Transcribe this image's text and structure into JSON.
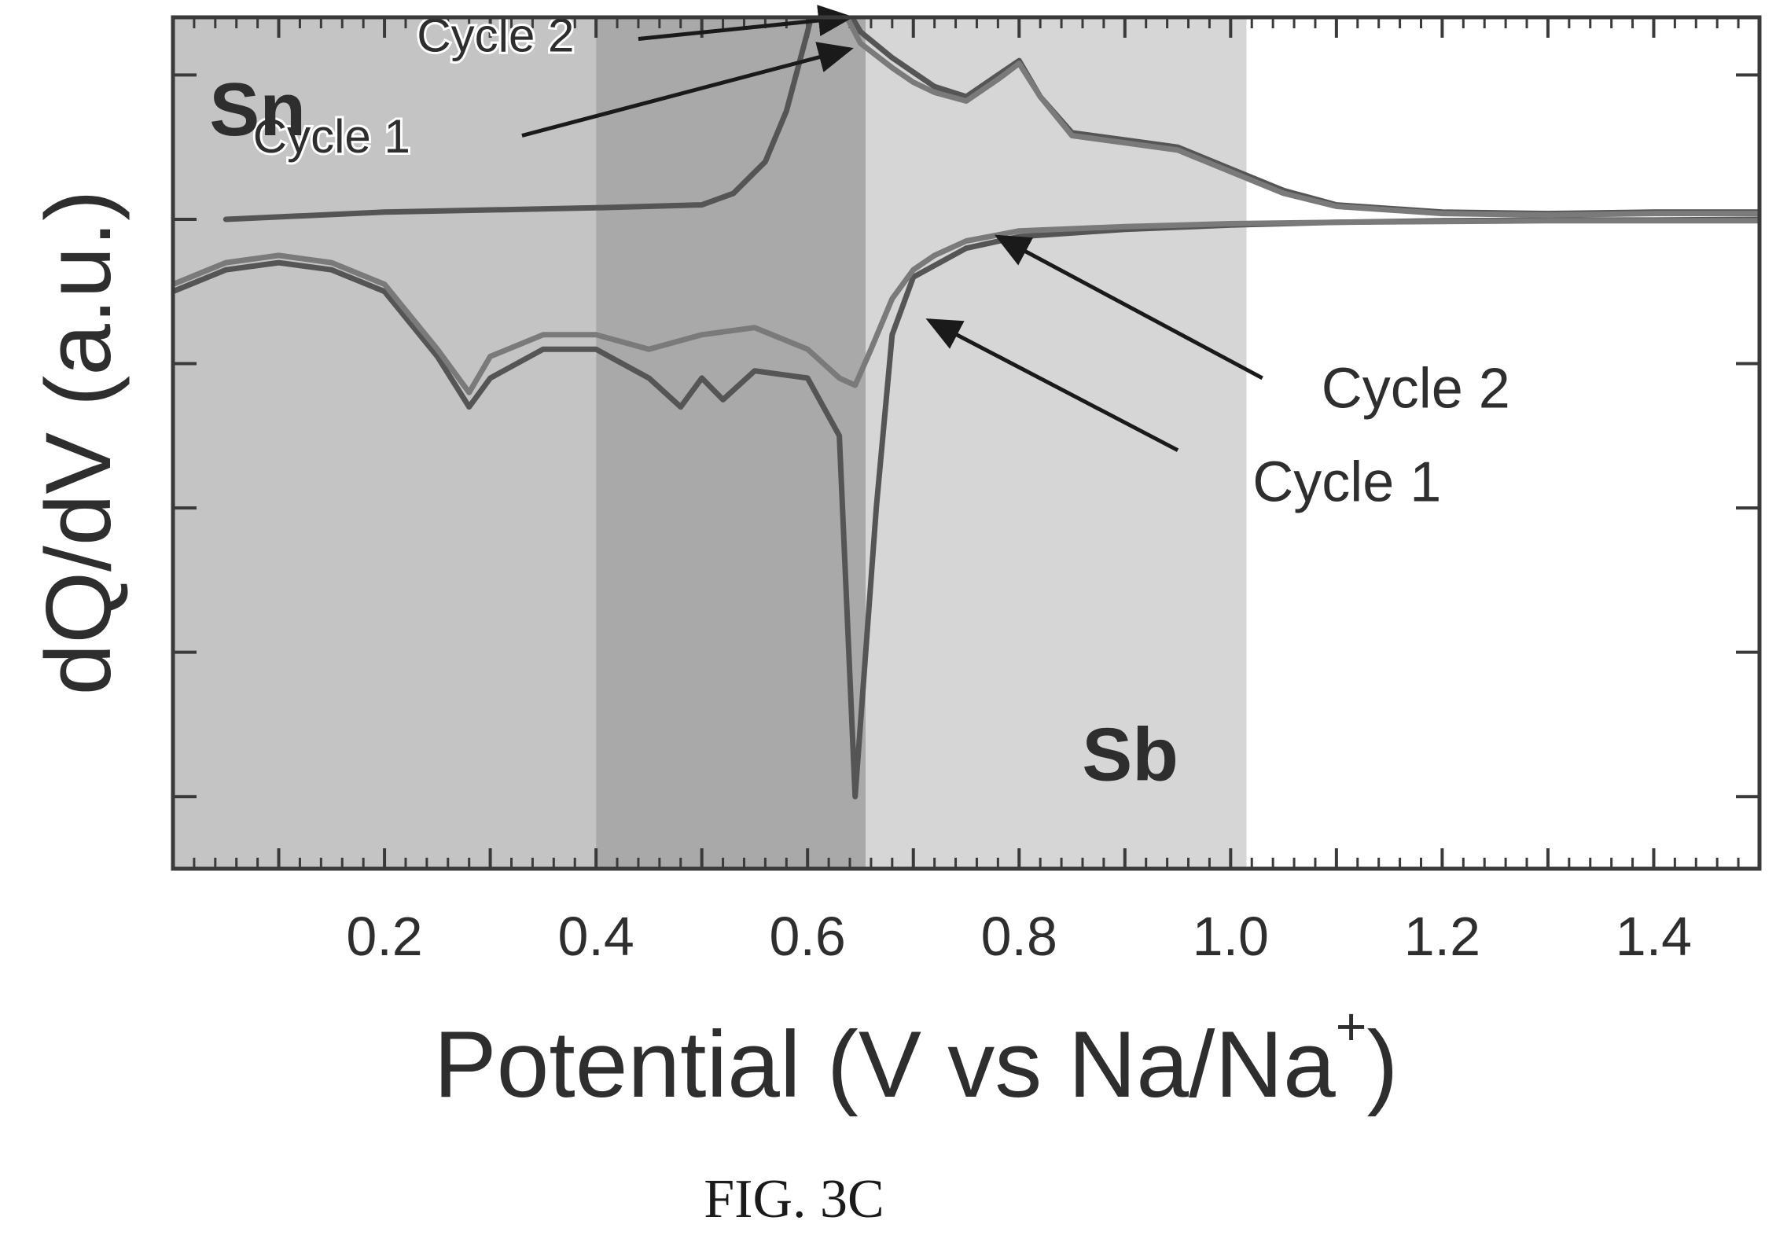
{
  "chart_data": {
    "type": "line",
    "xlabel": "Potential (V vs Na/Na",
    "xlabel_superscript": "+",
    "xlabel_close": ")",
    "ylabel": "dQ/dV (a.u.)",
    "xlim": [
      0.0,
      1.5
    ],
    "ylim": [
      -4.5,
      1.4
    ],
    "x_ticks": [
      0.2,
      0.4,
      0.6,
      0.8,
      1.0,
      1.2,
      1.4
    ],
    "x_tick_labels": [
      "0.2",
      "0.4",
      "0.6",
      "0.8",
      "1.0",
      "1.2",
      "1.4"
    ],
    "y_ticks": [
      -4,
      -3,
      -2,
      -1,
      0,
      1
    ],
    "regions": [
      {
        "x0": 0.0,
        "x1": 0.4,
        "color": "#c4c4c4"
      },
      {
        "x0": 0.4,
        "x1": 0.655,
        "color": "#a9a9a9"
      },
      {
        "x0": 0.655,
        "x1": 1.015,
        "color": "#d6d6d6"
      }
    ],
    "region_labels": [
      {
        "text": "Sn",
        "x": 0.08,
        "y": 0.72
      },
      {
        "text": "Sb",
        "x": 0.905,
        "y": -3.75
      }
    ],
    "series": [
      {
        "color": "#555555",
        "x": [
          0.0,
          0.05,
          0.1,
          0.15,
          0.2,
          0.25,
          0.28,
          0.3,
          0.35,
          0.4,
          0.45,
          0.48,
          0.5,
          0.52,
          0.55,
          0.6,
          0.63,
          0.645,
          0.665,
          0.68,
          0.7,
          0.75,
          0.8,
          0.9,
          1.0,
          1.1,
          1.2,
          1.3,
          1.4,
          1.5
        ],
        "y": [
          -0.5,
          -0.35,
          -0.3,
          -0.35,
          -0.5,
          -0.95,
          -1.3,
          -1.1,
          -0.9,
          -0.9,
          -1.1,
          -1.3,
          -1.1,
          -1.25,
          -1.05,
          -1.1,
          -1.5,
          -4.0,
          -2.0,
          -0.8,
          -0.4,
          -0.2,
          -0.12,
          -0.07,
          -0.04,
          -0.02,
          -0.01,
          -0.005,
          -0.005,
          0.0
        ]
      },
      {
        "color": "#7a7a7a",
        "x": [
          0.0,
          0.05,
          0.1,
          0.15,
          0.2,
          0.25,
          0.28,
          0.3,
          0.35,
          0.4,
          0.45,
          0.5,
          0.55,
          0.6,
          0.63,
          0.645,
          0.66,
          0.68,
          0.7,
          0.72,
          0.75,
          0.8,
          0.9,
          1.0,
          1.1,
          1.2,
          1.3,
          1.4,
          1.5
        ],
        "y": [
          -0.45,
          -0.3,
          -0.25,
          -0.3,
          -0.45,
          -0.9,
          -1.2,
          -0.95,
          -0.8,
          -0.8,
          -0.9,
          -0.8,
          -0.75,
          -0.9,
          -1.1,
          -1.15,
          -0.9,
          -0.55,
          -0.35,
          -0.25,
          -0.15,
          -0.08,
          -0.05,
          -0.03,
          -0.02,
          -0.015,
          -0.01,
          -0.01,
          -0.01
        ]
      },
      {
        "color": "#555555",
        "x": [
          0.05,
          0.2,
          0.4,
          0.5,
          0.53,
          0.56,
          0.58,
          0.6,
          0.61,
          0.62,
          0.63,
          0.65,
          0.68,
          0.7,
          0.72,
          0.75,
          0.78,
          0.8,
          0.82,
          0.85,
          0.9,
          0.95,
          1.0,
          1.05,
          1.1,
          1.2,
          1.3,
          1.4,
          1.5
        ],
        "y": [
          0.0,
          0.05,
          0.08,
          0.1,
          0.18,
          0.4,
          0.75,
          1.3,
          1.6,
          1.75,
          1.55,
          1.3,
          1.12,
          1.02,
          0.92,
          0.85,
          1.0,
          1.1,
          0.85,
          0.6,
          0.55,
          0.5,
          0.35,
          0.2,
          0.1,
          0.05,
          0.04,
          0.05,
          0.05
        ]
      },
      {
        "color": "#7a7a7a",
        "x": [
          0.61,
          0.62,
          0.63,
          0.65,
          0.68,
          0.7,
          0.72,
          0.75,
          0.78,
          0.8,
          0.82,
          0.85,
          0.9,
          0.95,
          1.0,
          1.05,
          1.1,
          1.2,
          1.3,
          1.4,
          1.5
        ],
        "y": [
          1.65,
          1.7,
          1.5,
          1.22,
          1.05,
          0.95,
          0.88,
          0.82,
          0.97,
          1.08,
          0.85,
          0.58,
          0.53,
          0.48,
          0.33,
          0.18,
          0.09,
          0.04,
          0.03,
          0.04,
          0.04
        ]
      }
    ],
    "annotations": [
      {
        "text": "Cycle 2",
        "text_x": 0.305,
        "text_y": 1.25,
        "arrow_from": [
          0.44,
          1.25
        ],
        "arrow_to": [
          0.64,
          1.4
        ]
      },
      {
        "text": "Cycle 1",
        "text_x": 0.15,
        "text_y": 0.55,
        "arrow_from": [
          0.33,
          0.58
        ],
        "arrow_to": [
          0.64,
          1.18
        ]
      },
      {
        "text": "Cycle 2",
        "text_x": 1.175,
        "text_y": -1.2,
        "arrow_from": [
          1.03,
          -1.1
        ],
        "arrow_to": [
          0.78,
          -0.12
        ]
      },
      {
        "text": "Cycle 1",
        "text_x": 1.11,
        "text_y": -1.85,
        "arrow_from": [
          0.95,
          -1.6
        ],
        "arrow_to": [
          0.715,
          -0.7
        ]
      }
    ]
  },
  "caption": "FIG. 3C"
}
